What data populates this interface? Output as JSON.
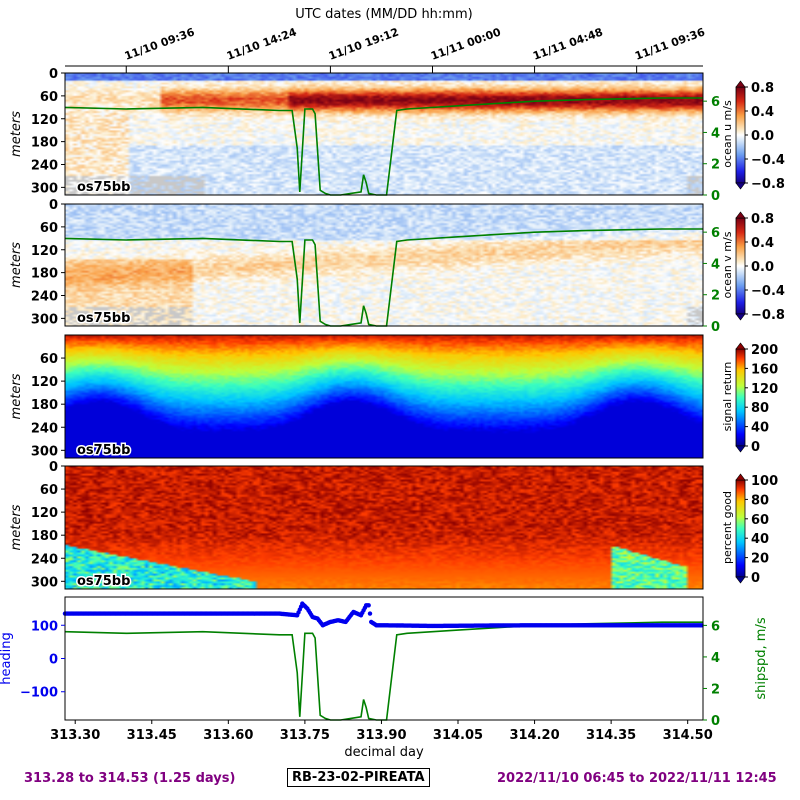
{
  "chart_data": [
    {
      "type": "heatmap",
      "panel": "u",
      "title": "UTC dates (MM/DD hh:mm)",
      "top_tick_labels": [
        "11/10 09:36",
        "11/10 14:24",
        "11/10 19:12",
        "11/11 00:00",
        "11/11 04:48",
        "11/11 09:36"
      ],
      "ylabel": "meters",
      "y_ticks": [
        0,
        60,
        120,
        180,
        240,
        300
      ],
      "ylim": [
        320,
        0
      ],
      "tag": "os75bb",
      "colorbar_label": "ocean u m/s",
      "colorbar_ticks": [
        "0.8",
        "0.4",
        "0.0",
        "−0.4",
        "−0.8"
      ],
      "colorbar_range": [
        -0.8,
        0.8
      ],
      "colormap": "blue-white-red",
      "overlay_series": "ship speed",
      "overlay_ticks": [
        0,
        2,
        4,
        6
      ]
    },
    {
      "type": "heatmap",
      "panel": "v",
      "ylabel": "meters",
      "y_ticks": [
        0,
        60,
        120,
        180,
        240,
        300
      ],
      "ylim": [
        320,
        0
      ],
      "tag": "os75bb",
      "colorbar_label": "ocean v m/s",
      "colorbar_ticks": [
        "0.8",
        "0.4",
        "0.0",
        "−0.4",
        "−0.8"
      ],
      "colorbar_range": [
        -0.8,
        0.8
      ],
      "colormap": "blue-white-red",
      "overlay_series": "ship speed",
      "overlay_ticks": [
        0,
        2,
        4,
        6
      ]
    },
    {
      "type": "heatmap",
      "panel": "amp",
      "ylabel": "meters",
      "y_ticks": [
        60,
        120,
        180,
        240,
        300
      ],
      "ylim": [
        320,
        0
      ],
      "tag": "os75bb",
      "colorbar_label": "signal return",
      "colorbar_ticks": [
        "200",
        "160",
        "120",
        "80",
        "40",
        "0"
      ],
      "colorbar_range": [
        0,
        200
      ],
      "colormap": "jet"
    },
    {
      "type": "heatmap",
      "panel": "pg",
      "ylabel": "meters",
      "y_ticks": [
        0,
        60,
        120,
        180,
        240,
        300
      ],
      "ylim": [
        320,
        0
      ],
      "tag": "os75bb",
      "colorbar_label": "percent good",
      "colorbar_ticks": [
        "100",
        "80",
        "60",
        "40",
        "20",
        "0"
      ],
      "colorbar_range": [
        0,
        100
      ],
      "colormap": "jet"
    },
    {
      "type": "line",
      "panel": "heading_shipspd",
      "xlabel": "decimal day",
      "x_ticks": [
        "313.30",
        "313.45",
        "313.60",
        "313.75",
        "313.90",
        "314.05",
        "314.20",
        "314.35",
        "314.50"
      ],
      "xlim": [
        313.28,
        314.53
      ],
      "left_ylabel": "heading",
      "left_ticks": [
        "100",
        "0",
        "−100"
      ],
      "left_ylim": [
        -185,
        185
      ],
      "right_ylabel": "shipspd, m/s",
      "right_ticks": [
        "6",
        "4",
        "2",
        "0"
      ],
      "right_ylim": [
        0,
        7.8
      ],
      "series": [
        {
          "name": "heading",
          "color": "#0000ee",
          "x": [
            313.28,
            313.5,
            313.7,
            313.735,
            313.745,
            313.755,
            313.765,
            313.775,
            313.785,
            313.8,
            313.815,
            313.83,
            313.845,
            313.86,
            313.87,
            313.875,
            313.88,
            313.89,
            313.9,
            314.0,
            314.2,
            314.35,
            314.53
          ],
          "y": [
            135,
            135,
            135,
            130,
            165,
            150,
            125,
            120,
            100,
            110,
            115,
            110,
            140,
            130,
            160,
            160,
            110,
            100,
            100,
            98,
            100,
            100,
            100
          ]
        },
        {
          "name": "shipspd",
          "color": "#008000",
          "x": [
            313.28,
            313.4,
            313.55,
            313.7,
            313.725,
            313.735,
            313.74,
            313.75,
            313.765,
            313.77,
            313.78,
            313.79,
            313.8,
            313.82,
            313.84,
            313.86,
            313.865,
            313.87,
            313.875,
            313.89,
            313.91,
            313.93,
            313.95,
            314.05,
            314.2,
            314.3,
            314.45,
            314.53
          ],
          "y": [
            5.6,
            5.5,
            5.6,
            5.4,
            5.4,
            3.0,
            0.2,
            5.5,
            5.5,
            5.2,
            0.3,
            0.1,
            0.0,
            0.0,
            0.1,
            0.2,
            1.3,
            0.8,
            0.1,
            0.0,
            0.0,
            5.4,
            5.5,
            5.7,
            6.0,
            6.1,
            6.2,
            6.2
          ]
        }
      ]
    }
  ],
  "footer": {
    "day_range": "313.28 to 314.53 (1.25 days)",
    "cruise": "RB-23-02-PIREATA",
    "date_range": "2022/11/10 06:45 to 2022/11/11 12:45"
  },
  "colors": {
    "footer_purple": "#800080",
    "heading_blue": "#0000ee",
    "shipspd_green": "#008000"
  }
}
